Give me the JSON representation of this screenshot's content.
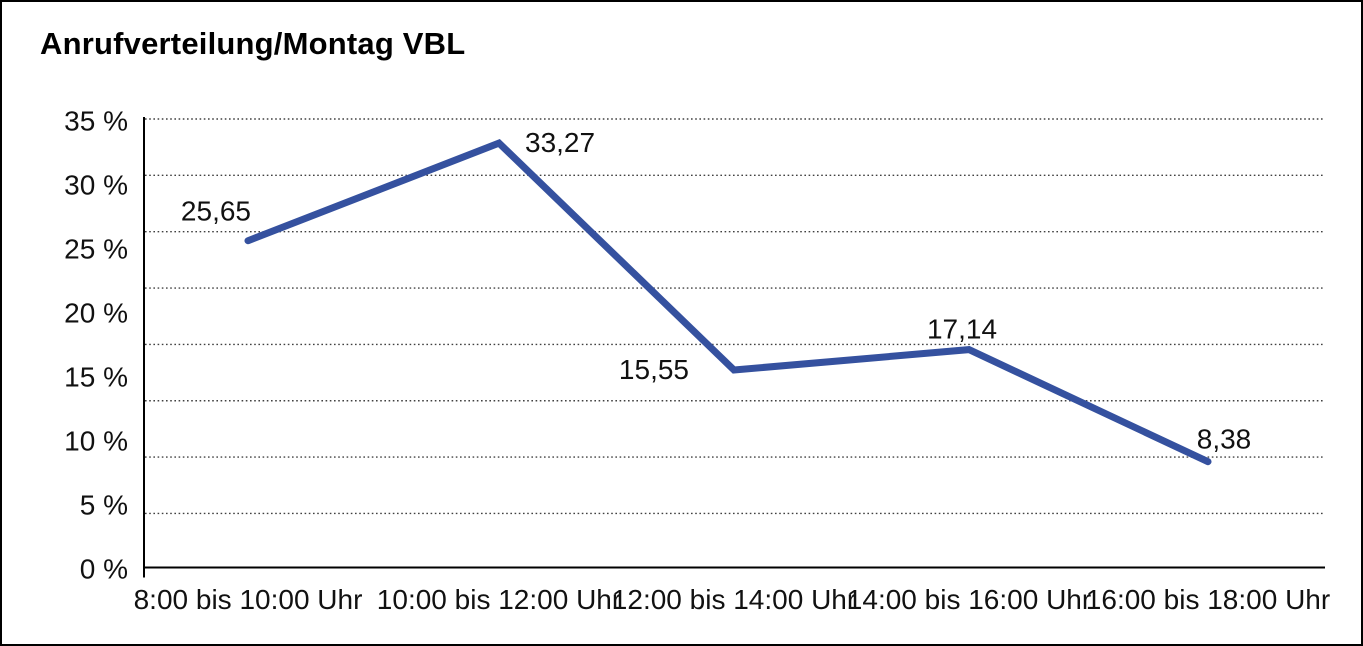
{
  "page": {
    "background": "#ffffff",
    "border_color": "#000000"
  },
  "chart_data": {
    "type": "line",
    "title": "Anrufverteilung/Montag VBL",
    "categories": [
      "8:00 bis 10:00 Uhr",
      "10:00 bis 12:00 Uhr",
      "12:00 bis 14:00 Uhr",
      "14:00 bis 16:00 Uhr",
      "16:00 bis 18:00 Uhr"
    ],
    "values": [
      25.65,
      33.27,
      15.55,
      17.14,
      8.38
    ],
    "data_labels": [
      "25,65",
      "33,27",
      "15,55",
      "17,14",
      "8,38"
    ],
    "y_tick_labels": [
      "35 %",
      "30 %",
      "25 %",
      "20 %",
      "15 %",
      "10 %",
      "5 %",
      "0 %"
    ],
    "ylim": [
      0,
      35
    ],
    "y_tick_step": 5,
    "xlabel": "",
    "ylabel": "",
    "legend": "none",
    "grid": "horizontal-dotted",
    "line_color": "#35519F",
    "axis_color": "#000000",
    "gridline_color": "#404040",
    "text_color": "#111111"
  }
}
